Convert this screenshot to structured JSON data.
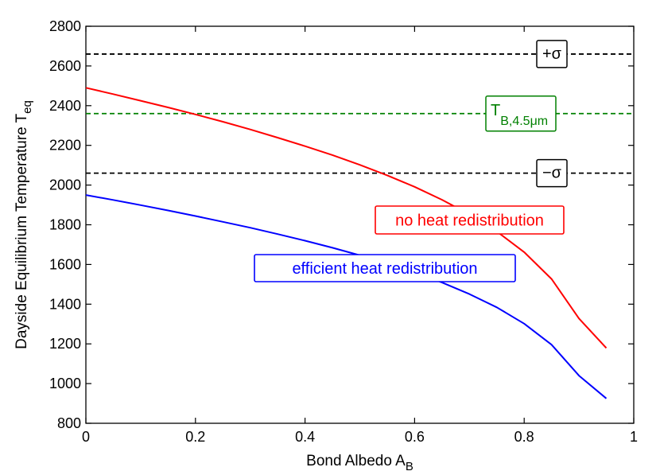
{
  "chart_data": {
    "type": "line",
    "xlabel": {
      "main": "Bond Albedo A",
      "sub": "B"
    },
    "ylabel": {
      "main": "Dayside Equilibrium Temperature T",
      "sub": "eq"
    },
    "xlim": [
      0,
      1
    ],
    "ylim": [
      800,
      2800
    ],
    "xticks": [
      0,
      0.2,
      0.4,
      0.6,
      0.8,
      1
    ],
    "xtick_labels": [
      "0",
      "0.2",
      "0.4",
      "0.6",
      "0.8",
      "1"
    ],
    "yticks": [
      800,
      1000,
      1200,
      1400,
      1600,
      1800,
      2000,
      2200,
      2400,
      2600,
      2800
    ],
    "ytick_labels": [
      "800",
      "1000",
      "1200",
      "1400",
      "1600",
      "1800",
      "2000",
      "2200",
      "2400",
      "2600",
      "2800"
    ],
    "grid": false,
    "series": [
      {
        "name": "no heat redistribution",
        "color": "#ff0000",
        "x": [
          0,
          0.05,
          0.1,
          0.15,
          0.2,
          0.25,
          0.3,
          0.35,
          0.4,
          0.45,
          0.5,
          0.55,
          0.6,
          0.65,
          0.7,
          0.75,
          0.8,
          0.85,
          0.9,
          0.95
        ],
        "y": [
          2490,
          2458,
          2425,
          2391,
          2356,
          2319,
          2280,
          2239,
          2196,
          2151,
          2102,
          2049,
          1991,
          1926,
          1852,
          1766,
          1662,
          1527,
          1328,
          1179
        ]
      },
      {
        "name": "efficient heat redistribution",
        "color": "#0000ff",
        "x": [
          0,
          0.05,
          0.1,
          0.15,
          0.2,
          0.25,
          0.3,
          0.35,
          0.4,
          0.45,
          0.5,
          0.55,
          0.6,
          0.65,
          0.7,
          0.75,
          0.8,
          0.85,
          0.9,
          0.95
        ],
        "y": [
          1950,
          1925,
          1899,
          1872,
          1844,
          1815,
          1785,
          1753,
          1720,
          1684,
          1646,
          1605,
          1560,
          1509,
          1451,
          1384,
          1302,
          1196,
          1040,
          925
        ]
      }
    ],
    "reference_lines": [
      {
        "y": 2660,
        "color": "#000000",
        "label": "+σ",
        "label_color": "#000000"
      },
      {
        "y": 2360,
        "color": "#008000",
        "label_main": "T",
        "label_sub": "B,4.5μm",
        "label_color": "#008000"
      },
      {
        "y": 2060,
        "color": "#000000",
        "label": "−σ",
        "label_color": "#000000"
      }
    ],
    "annotations": [
      {
        "text": "no heat redistribution",
        "color": "#ff0000"
      },
      {
        "text": "efficient heat redistribution",
        "color": "#0000ff"
      }
    ]
  }
}
